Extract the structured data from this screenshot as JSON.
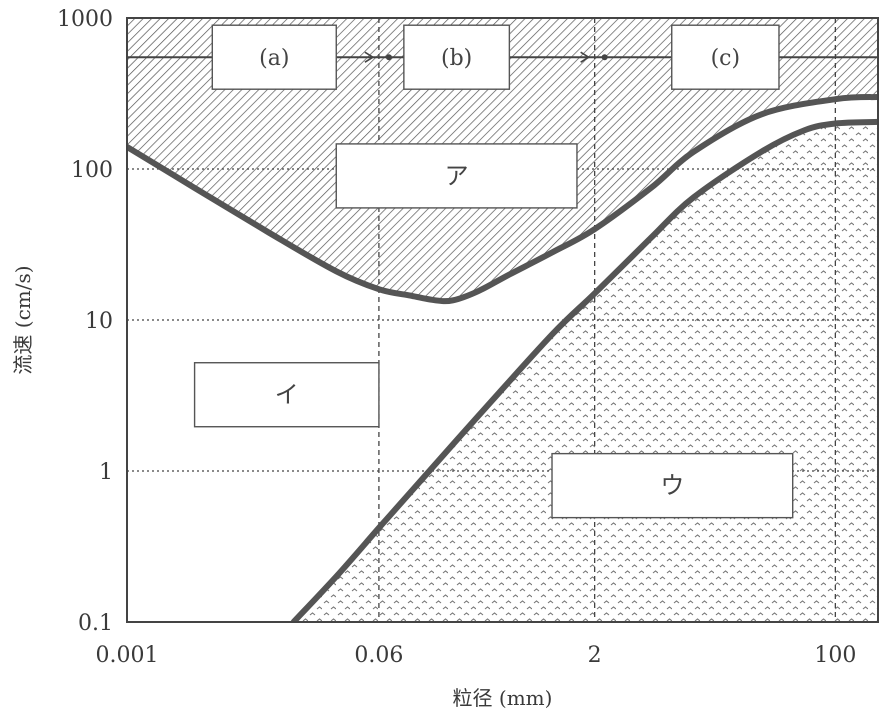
{
  "chart_data": {
    "type": "line",
    "xlabel": "粒径 (mm)",
    "ylabel": "流速 (cm/s)",
    "x_scale": "log",
    "y_scale": "log",
    "xlim": [
      0.001,
      200
    ],
    "ylim": [
      0.1,
      1000
    ],
    "x_ticks": [
      {
        "value": 0.001,
        "label": "0.001"
      },
      {
        "value": 0.06,
        "label": "0.06"
      },
      {
        "value": 2,
        "label": "2"
      },
      {
        "value": 100,
        "label": "100"
      }
    ],
    "y_ticks": [
      {
        "value": 0.1,
        "label": "0.1"
      },
      {
        "value": 1,
        "label": "1"
      },
      {
        "value": 10,
        "label": "10"
      },
      {
        "value": 100,
        "label": "100"
      },
      {
        "value": 1000,
        "label": "1000"
      }
    ],
    "grid": true,
    "series": [
      {
        "x": [
          0.001,
          0.003,
          0.01,
          0.03,
          0.06,
          0.1,
          0.15,
          0.2,
          0.3,
          0.5,
          1,
          2,
          5,
          10,
          30,
          100,
          200
        ],
        "y": [
          140,
          75,
          38,
          21,
          16,
          14.5,
          13.5,
          13.5,
          15.5,
          20,
          28,
          40,
          75,
          130,
          230,
          290,
          300
        ]
      },
      {
        "x": [
          0.015,
          0.03,
          0.06,
          0.1,
          0.3,
          1,
          2,
          5,
          10,
          30,
          60,
          100,
          200
        ],
        "y": [
          0.1,
          0.2,
          0.42,
          0.72,
          2.3,
          8,
          15,
          35,
          65,
          130,
          180,
          200,
          205
        ]
      }
    ],
    "annotations": [
      {
        "x_range": [
          0.004,
          0.03
        ],
        "y": 550,
        "text": "(a)"
      },
      {
        "x_range": [
          0.09,
          0.5
        ],
        "y": 550,
        "text": "(b)"
      },
      {
        "x_range": [
          7,
          40
        ],
        "y": 550,
        "text": "(c)"
      },
      {
        "x_range": [
          0.03,
          1.5
        ],
        "y": 90,
        "text": "ア"
      },
      {
        "x_range": [
          0.003,
          0.06
        ],
        "y": 3.2,
        "text": "イ"
      },
      {
        "x_range": [
          1,
          50
        ],
        "y": 0.8,
        "text": "ウ"
      }
    ],
    "transport_line_y": 550
  }
}
